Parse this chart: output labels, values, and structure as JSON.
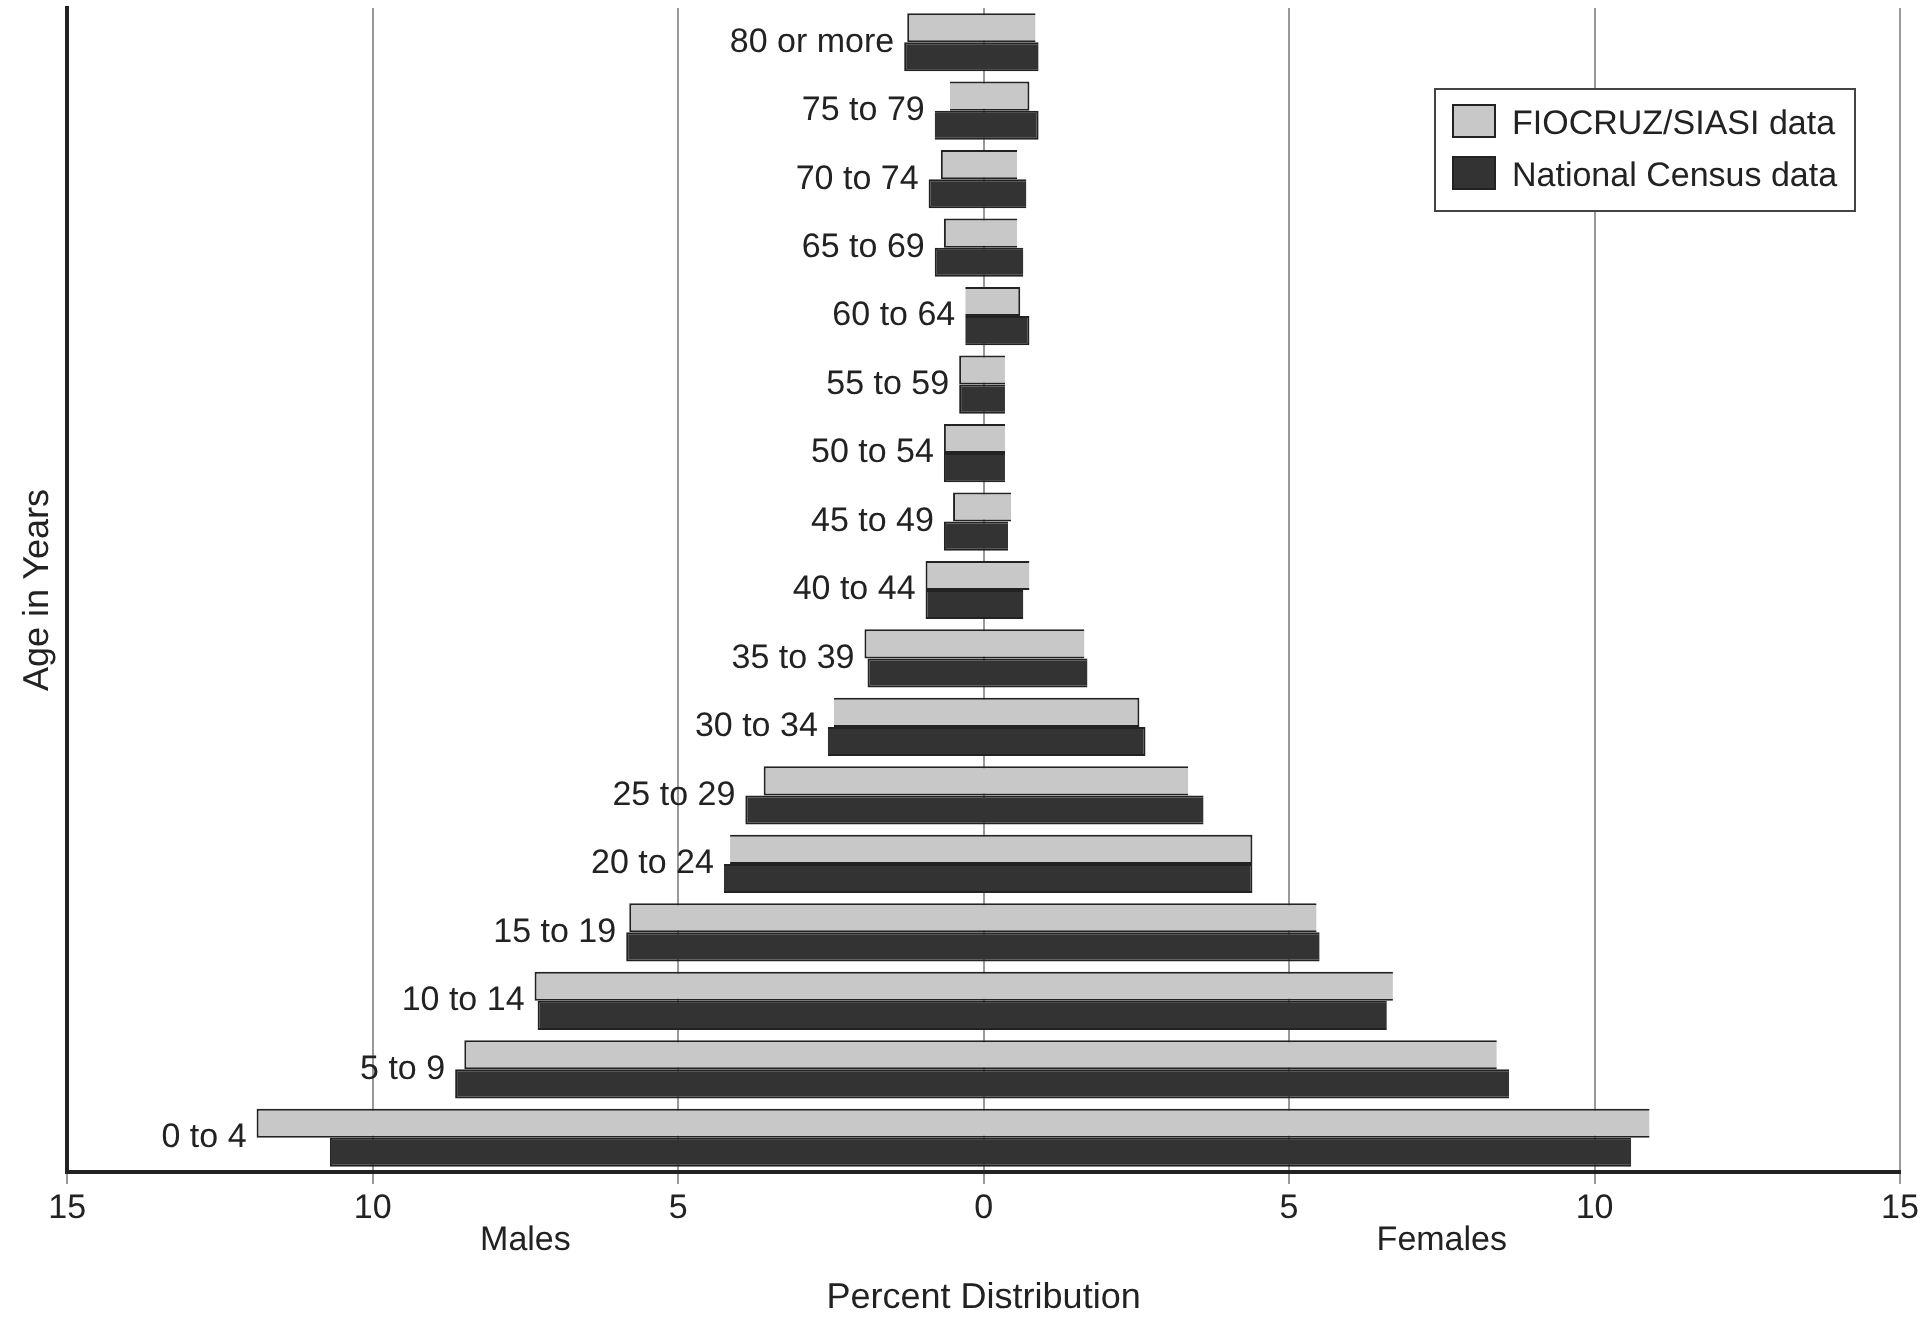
{
  "chart_data": {
    "type": "bar",
    "orientation": "horizontal",
    "xlabel": "Percent Distribution",
    "ylabel": "Age in Years",
    "annotations": [
      "Males",
      "Females"
    ],
    "categories": [
      "80 or more",
      "75 to 79",
      "70 to 74",
      "65 to 69",
      "60 to 64",
      "55 to 59",
      "50 to 54",
      "45 to 49",
      "40 to 44",
      "35 to 39",
      "30 to 34",
      "25 to 29",
      "20 to 24",
      "15 to 19",
      "10 to 14",
      "5 to 9",
      "0 to 4"
    ],
    "series": [
      {
        "name": "FIOCRUZ/SIASI data",
        "color": "#c8c8c8",
        "base": [
          -1.25,
          -0.55,
          -0.7,
          -0.65,
          -0.3,
          -0.4,
          -0.65,
          -0.5,
          -0.95,
          -1.95,
          -2.45,
          -3.6,
          -4.15,
          -5.8,
          -7.35,
          -8.5,
          -11.9
        ],
        "values": [
          2.1,
          1.3,
          1.25,
          1.2,
          0.9,
          0.75,
          1.0,
          0.95,
          1.7,
          3.6,
          5.0,
          6.95,
          8.55,
          11.25,
          14.05,
          16.9,
          22.8
        ]
      },
      {
        "name": "National Census data",
        "color": "#333333",
        "base": [
          -1.3,
          -0.8,
          -0.9,
          -0.8,
          -0.3,
          -0.4,
          -0.65,
          -0.65,
          -0.95,
          -1.9,
          -2.55,
          -3.9,
          -4.25,
          -5.85,
          -7.3,
          -8.65,
          -10.7
        ],
        "values": [
          2.2,
          1.7,
          1.6,
          1.45,
          1.05,
          0.75,
          1.0,
          1.05,
          1.6,
          3.6,
          5.2,
          7.5,
          8.65,
          11.35,
          13.9,
          17.25,
          21.3
        ]
      }
    ],
    "xlim": [
      -15,
      15
    ],
    "xticks": [
      {
        "value": -15,
        "label": "15"
      },
      {
        "value": -10,
        "label": "10"
      },
      {
        "value": -5,
        "label": "5"
      },
      0,
      5,
      10,
      15
    ],
    "grid": "x",
    "legend": "top right"
  }
}
